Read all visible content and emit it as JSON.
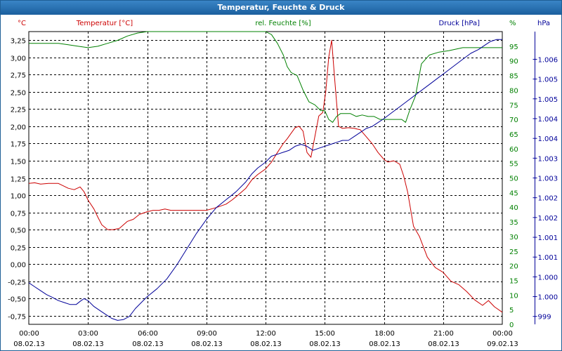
{
  "window": {
    "title": "Temperatur, Feuchte & Druck"
  },
  "colors": {
    "temperature": "#cc0000",
    "humidity": "#008000",
    "pressure": "#000099",
    "titlebar": "#2a70b0",
    "grid": "#000000",
    "axis_text": "#000000"
  },
  "chart_data": {
    "type": "line",
    "title": "Temperatur, Feuchte & Druck",
    "grid": true,
    "legend": "top",
    "x_ticks": [
      {
        "time": "00:00",
        "date": "08.02.13"
      },
      {
        "time": "03:00",
        "date": "08.02.13"
      },
      {
        "time": "06:00",
        "date": "08.02.13"
      },
      {
        "time": "09:00",
        "date": "08.02.13"
      },
      {
        "time": "12:00",
        "date": "08.02.13"
      },
      {
        "time": "15:00",
        "date": "08.02.13"
      },
      {
        "time": "18:00",
        "date": "08.02.13"
      },
      {
        "time": "21:00",
        "date": "08.02.13"
      },
      {
        "time": "00:00",
        "date": "09.02.13"
      }
    ],
    "x_unit": "hours",
    "x_range": [
      0,
      24
    ],
    "axes": {
      "temperature": {
        "unit": "°C",
        "range": [
          -0.875,
          3.375
        ],
        "ticks": [
          "-0,75",
          "-0,50",
          "-0,25",
          "0,00",
          "0,25",
          "0,50",
          "0,75",
          "1,00",
          "1,25",
          "1,50",
          "1,75",
          "2,00",
          "2,25",
          "2,50",
          "2,75",
          "3,00",
          "3,25"
        ],
        "tick_values": [
          -0.75,
          -0.5,
          -0.25,
          0,
          0.25,
          0.5,
          0.75,
          1,
          1.25,
          1.5,
          1.75,
          2,
          2.25,
          2.5,
          2.75,
          3,
          3.25
        ]
      },
      "humidity": {
        "unit": "%",
        "range": [
          0,
          100
        ],
        "ticks": [
          "0",
          "5",
          "10",
          "15",
          "20",
          "25",
          "30",
          "35",
          "40",
          "45",
          "50",
          "55",
          "60",
          "65",
          "70",
          "75",
          "80",
          "85",
          "90",
          "95"
        ],
        "tick_values": [
          0,
          5,
          10,
          15,
          20,
          25,
          30,
          35,
          40,
          45,
          50,
          55,
          60,
          65,
          70,
          75,
          80,
          85,
          90,
          95
        ]
      },
      "pressure": {
        "unit": "hPa",
        "range": [
          998.8,
          1006.2
        ],
        "ticks": [
          "999",
          "1.000",
          "1.000",
          "1.001",
          "1.001",
          "1.002",
          "1.002",
          "1.003",
          "1.003",
          "1.004",
          "1.004",
          "1.005",
          "1.005",
          "1.006"
        ],
        "tick_values": [
          999,
          999.5,
          1000,
          1000.5,
          1001,
          1001.5,
          1002,
          1002.5,
          1003,
          1003.5,
          1004,
          1004.5,
          1005,
          1005.5
        ]
      }
    },
    "series": [
      {
        "name": "Temperatur [°C]",
        "axis": "temperature",
        "x": [
          0,
          0.3,
          0.6,
          1,
          1.5,
          2,
          2.3,
          2.6,
          2.8,
          3,
          3.3,
          3.5,
          3.7,
          4,
          4.3,
          4.6,
          5,
          5.3,
          5.6,
          6,
          6.3,
          6.6,
          6.9,
          7.2,
          7.5,
          8,
          8.5,
          9,
          9.5,
          10,
          10.3,
          10.6,
          11,
          11.3,
          11.6,
          12,
          12.3,
          12.6,
          12.9,
          13.1,
          13.3,
          13.5,
          13.7,
          13.9,
          14.1,
          14.3,
          14.5,
          14.7,
          14.9,
          15.05,
          15.2,
          15.35,
          15.5,
          15.7,
          15.9,
          16.2,
          16.5,
          16.8,
          17.1,
          17.4,
          17.7,
          18,
          18.2,
          18.5,
          18.8,
          19,
          19.2,
          19.5,
          19.8,
          20.2,
          20.6,
          21,
          21.4,
          21.8,
          22.2,
          22.6,
          23,
          23.3,
          23.6,
          24
        ],
        "values": [
          1.17,
          1.18,
          1.16,
          1.17,
          1.17,
          1.1,
          1.08,
          1.12,
          1.05,
          0.93,
          0.8,
          0.68,
          0.57,
          0.5,
          0.5,
          0.52,
          0.62,
          0.65,
          0.72,
          0.76,
          0.78,
          0.78,
          0.8,
          0.78,
          0.78,
          0.78,
          0.78,
          0.78,
          0.82,
          0.87,
          0.93,
          1.0,
          1.1,
          1.22,
          1.3,
          1.38,
          1.48,
          1.62,
          1.75,
          1.82,
          1.9,
          1.98,
          2.0,
          1.93,
          1.62,
          1.55,
          1.85,
          2.15,
          2.2,
          2.5,
          3.0,
          3.25,
          2.7,
          2.0,
          1.97,
          1.98,
          1.97,
          1.95,
          1.85,
          1.75,
          1.62,
          1.52,
          1.48,
          1.5,
          1.45,
          1.28,
          1.05,
          0.55,
          0.4,
          0.1,
          -0.05,
          -0.12,
          -0.25,
          -0.3,
          -0.4,
          -0.52,
          -0.6,
          -0.53,
          -0.62,
          -0.7
        ]
      },
      {
        "name": "rel. Feuchte [%]",
        "axis": "humidity",
        "x": [
          0,
          0.5,
          1,
          1.5,
          2,
          2.5,
          3,
          3.5,
          4,
          4.5,
          5,
          5.5,
          6,
          7,
          8,
          9,
          10,
          11,
          12,
          12.3,
          12.6,
          12.9,
          13.1,
          13.3,
          13.6,
          13.9,
          14.2,
          14.5,
          14.8,
          15,
          15.2,
          15.4,
          15.6,
          15.8,
          16,
          16.3,
          16.6,
          16.9,
          17.2,
          17.5,
          17.8,
          18.2,
          18.6,
          18.9,
          19.1,
          19.3,
          19.6,
          19.9,
          20.3,
          20.8,
          21.3,
          22,
          22.6,
          23,
          23.3,
          23.6,
          24
        ],
        "values": [
          96,
          96,
          96,
          96,
          95.5,
          95,
          94.5,
          95,
          96,
          97,
          98.5,
          99.5,
          100,
          100,
          100,
          100,
          100,
          100,
          100,
          99,
          96,
          92,
          88,
          86,
          85,
          80,
          76,
          75,
          73,
          73,
          70,
          69,
          71,
          72,
          72,
          72,
          71,
          71.5,
          71,
          71,
          70,
          70,
          70,
          70,
          69,
          73,
          78,
          89,
          92,
          93,
          93.5,
          94.5,
          94.5,
          94.5,
          94.5,
          94.5,
          94.5
        ]
      },
      {
        "name": "Druck [hPa]",
        "axis": "pressure",
        "x": [
          0,
          0.3,
          0.6,
          0.9,
          1.2,
          1.5,
          1.8,
          2.1,
          2.4,
          2.6,
          2.8,
          3,
          3.3,
          3.6,
          3.9,
          4.2,
          4.5,
          4.8,
          5.1,
          5.4,
          5.7,
          6,
          6.5,
          7,
          7.5,
          8,
          8.5,
          9,
          9.5,
          10,
          10.5,
          11,
          11.3,
          11.6,
          12,
          12.3,
          12.6,
          12.9,
          13.2,
          13.5,
          13.8,
          14.1,
          14.4,
          14.7,
          15,
          15.3,
          15.6,
          15.9,
          16.2,
          16.5,
          16.8,
          17.1,
          17.4,
          17.7,
          18,
          18.4,
          18.8,
          19.2,
          19.6,
          20,
          20.4,
          20.8,
          21.2,
          21.6,
          22,
          22.4,
          22.8,
          23.1,
          23.4,
          23.7,
          24
        ],
        "values": [
          999.85,
          999.75,
          999.65,
          999.55,
          999.48,
          999.4,
          999.35,
          999.3,
          999.3,
          999.38,
          999.45,
          999.4,
          999.25,
          999.15,
          999.05,
          998.95,
          998.9,
          998.92,
          999.0,
          999.2,
          999.35,
          999.5,
          999.7,
          999.95,
          1000.3,
          1000.7,
          1001.1,
          1001.45,
          1001.75,
          1001.95,
          1002.15,
          1002.4,
          1002.6,
          1002.75,
          1002.9,
          1003.05,
          1003.1,
          1003.15,
          1003.2,
          1003.3,
          1003.35,
          1003.3,
          1003.2,
          1003.25,
          1003.3,
          1003.35,
          1003.4,
          1003.45,
          1003.45,
          1003.55,
          1003.65,
          1003.75,
          1003.8,
          1003.9,
          1004.0,
          1004.15,
          1004.3,
          1004.45,
          1004.6,
          1004.75,
          1004.9,
          1005.05,
          1005.2,
          1005.35,
          1005.5,
          1005.65,
          1005.75,
          1005.85,
          1005.95,
          1006.0,
          1006.0
        ]
      }
    ]
  }
}
